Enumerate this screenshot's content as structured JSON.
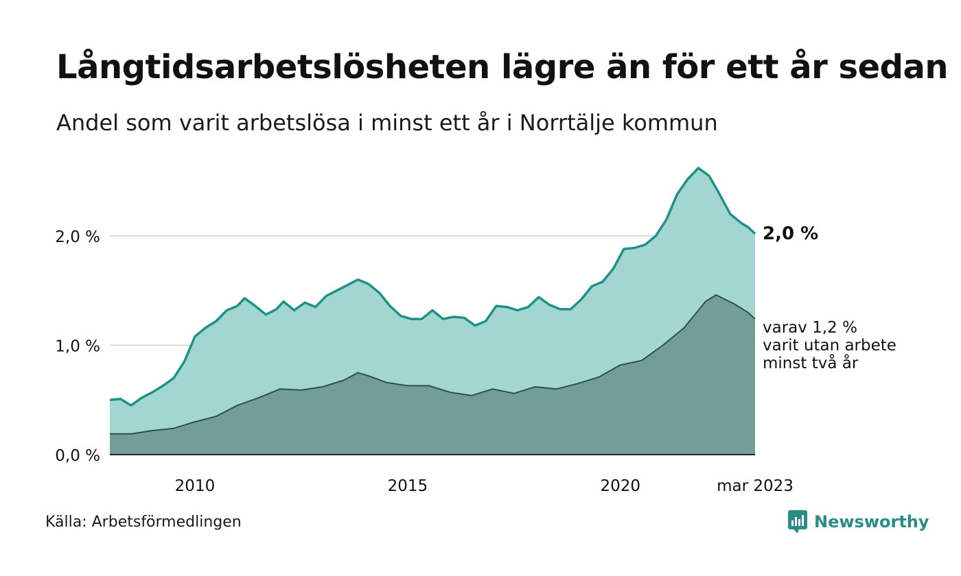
{
  "title": "Långtidsarbetslösheten lägre än för ett år sedan",
  "subtitle": "Andel som varit arbetslösa i minst ett år i Norrtälje kommun",
  "source": "Källa: Arbetsförmedlingen",
  "brand": {
    "name": "Newsworthy",
    "icon": "newsworthy-logo-icon"
  },
  "colors": {
    "total_fill": "#a3d6d1",
    "total_line": "#1f9187",
    "two_year_fill": "#729e97",
    "two_year_line": "#2f4f4a",
    "gridline": "#dcdcdc",
    "brand": "#2a8c86"
  },
  "chart_data": {
    "type": "area",
    "x_start": "2008-01",
    "x_end": "2023-03",
    "x_tick_labels": [
      {
        "x": "2010",
        "label": "2010"
      },
      {
        "x": "2015",
        "label": "2015"
      },
      {
        "x": "2020",
        "label": "2020"
      },
      {
        "x": "2023-03",
        "label": "mar 2023"
      }
    ],
    "y_ticks": [
      0,
      1,
      2
    ],
    "y_tick_labels": [
      "0,0 %",
      "1,0 %",
      "2,0 %"
    ],
    "ylim": [
      0,
      2.7
    ],
    "grid": true,
    "annotations": {
      "total_end": "2,0 %",
      "two_year_end": [
        "varav 1,2 %",
        "varit utan arbete",
        "minst två år"
      ]
    },
    "series": [
      {
        "key": "total",
        "points": [
          [
            "2008-01",
            0.5
          ],
          [
            "2008-04",
            0.51
          ],
          [
            "2008-07",
            0.45
          ],
          [
            "2008-10",
            0.52
          ],
          [
            "2009-01",
            0.57
          ],
          [
            "2009-04",
            0.63
          ],
          [
            "2009-07",
            0.7
          ],
          [
            "2009-10",
            0.85
          ],
          [
            "2010-01",
            1.08
          ],
          [
            "2010-04",
            1.16
          ],
          [
            "2010-07",
            1.22
          ],
          [
            "2010-10",
            1.32
          ],
          [
            "2011-01",
            1.36
          ],
          [
            "2011-03",
            1.43
          ],
          [
            "2011-06",
            1.36
          ],
          [
            "2011-09",
            1.28
          ],
          [
            "2011-12",
            1.33
          ],
          [
            "2012-02",
            1.4
          ],
          [
            "2012-05",
            1.32
          ],
          [
            "2012-08",
            1.39
          ],
          [
            "2012-11",
            1.35
          ],
          [
            "2013-02",
            1.45
          ],
          [
            "2013-05",
            1.5
          ],
          [
            "2013-08",
            1.55
          ],
          [
            "2013-11",
            1.6
          ],
          [
            "2014-02",
            1.56
          ],
          [
            "2014-05",
            1.48
          ],
          [
            "2014-08",
            1.36
          ],
          [
            "2014-11",
            1.27
          ],
          [
            "2015-02",
            1.24
          ],
          [
            "2015-05",
            1.24
          ],
          [
            "2015-08",
            1.32
          ],
          [
            "2015-11",
            1.24
          ],
          [
            "2016-02",
            1.26
          ],
          [
            "2016-05",
            1.25
          ],
          [
            "2016-08",
            1.18
          ],
          [
            "2016-11",
            1.22
          ],
          [
            "2017-02",
            1.36
          ],
          [
            "2017-05",
            1.35
          ],
          [
            "2017-08",
            1.32
          ],
          [
            "2017-11",
            1.35
          ],
          [
            "2018-02",
            1.44
          ],
          [
            "2018-05",
            1.37
          ],
          [
            "2018-08",
            1.33
          ],
          [
            "2018-11",
            1.33
          ],
          [
            "2019-02",
            1.42
          ],
          [
            "2019-05",
            1.54
          ],
          [
            "2019-08",
            1.58
          ],
          [
            "2019-11",
            1.7
          ],
          [
            "2020-02",
            1.88
          ],
          [
            "2020-05",
            1.89
          ],
          [
            "2020-08",
            1.92
          ],
          [
            "2020-11",
            2.0
          ],
          [
            "2021-02",
            2.15
          ],
          [
            "2021-05",
            2.38
          ],
          [
            "2021-08",
            2.52
          ],
          [
            "2021-11",
            2.62
          ],
          [
            "2022-02",
            2.55
          ],
          [
            "2022-05",
            2.38
          ],
          [
            "2022-08",
            2.2
          ],
          [
            "2022-11",
            2.12
          ],
          [
            "2023-01",
            2.08
          ],
          [
            "2023-03",
            2.02
          ]
        ]
      },
      {
        "key": "two_year",
        "points": [
          [
            "2008-01",
            0.19
          ],
          [
            "2008-07",
            0.19
          ],
          [
            "2009-01",
            0.22
          ],
          [
            "2009-07",
            0.24
          ],
          [
            "2010-01",
            0.3
          ],
          [
            "2010-07",
            0.35
          ],
          [
            "2011-01",
            0.45
          ],
          [
            "2011-07",
            0.52
          ],
          [
            "2012-01",
            0.6
          ],
          [
            "2012-07",
            0.59
          ],
          [
            "2013-01",
            0.62
          ],
          [
            "2013-07",
            0.68
          ],
          [
            "2013-11",
            0.75
          ],
          [
            "2014-02",
            0.72
          ],
          [
            "2014-07",
            0.66
          ],
          [
            "2015-01",
            0.63
          ],
          [
            "2015-07",
            0.63
          ],
          [
            "2016-01",
            0.57
          ],
          [
            "2016-07",
            0.54
          ],
          [
            "2017-01",
            0.6
          ],
          [
            "2017-07",
            0.56
          ],
          [
            "2018-01",
            0.62
          ],
          [
            "2018-07",
            0.6
          ],
          [
            "2019-01",
            0.65
          ],
          [
            "2019-07",
            0.71
          ],
          [
            "2020-01",
            0.82
          ],
          [
            "2020-07",
            0.86
          ],
          [
            "2021-01",
            1.0
          ],
          [
            "2021-07",
            1.16
          ],
          [
            "2022-01",
            1.4
          ],
          [
            "2022-04",
            1.46
          ],
          [
            "2022-09",
            1.38
          ],
          [
            "2023-01",
            1.3
          ],
          [
            "2023-03",
            1.24
          ]
        ]
      }
    ]
  }
}
